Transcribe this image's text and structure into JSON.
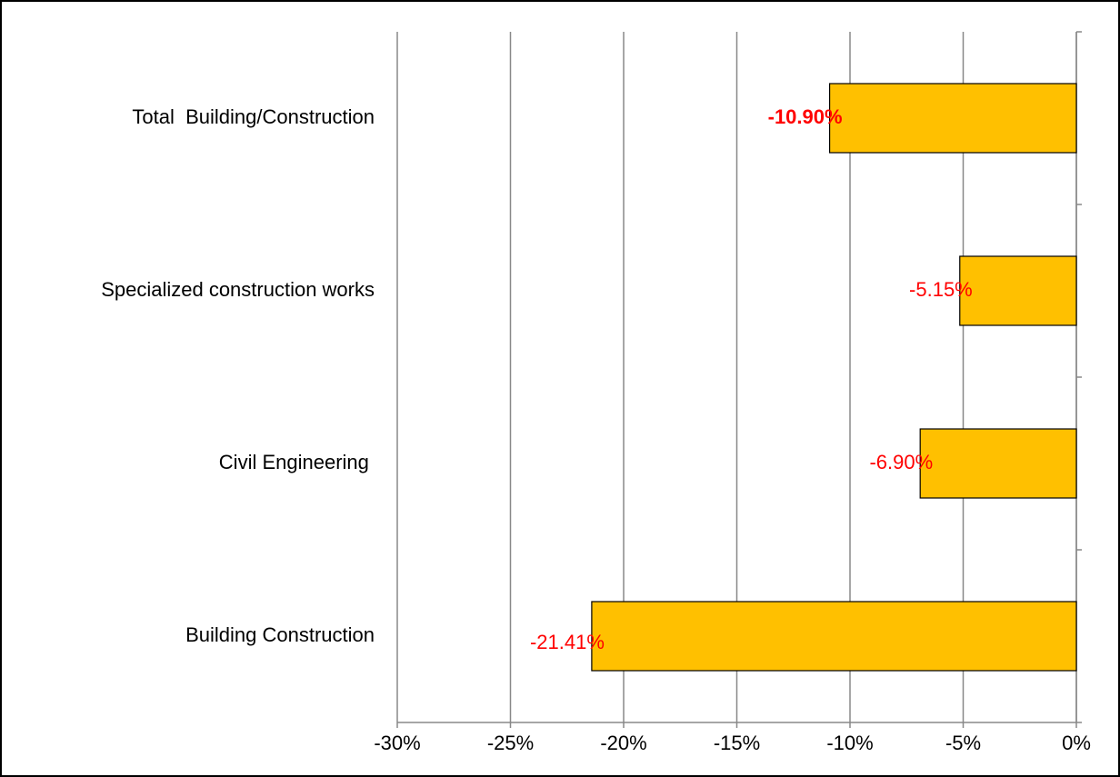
{
  "chart_data": {
    "type": "barh",
    "categories": [
      "Total  Building/Construction",
      "Specialized construction works",
      "Civil Engineering ",
      "Building Construction"
    ],
    "values": [
      -10.9,
      -5.15,
      -6.9,
      -21.41
    ],
    "value_labels": [
      "-10.90%",
      "-5.15%",
      "-6.90%",
      "-21.41%"
    ],
    "value_label_bold": [
      true,
      false,
      false,
      false
    ],
    "color": "#FFC000",
    "value_label_color": "#FF0000",
    "xlim": [
      -30,
      0
    ],
    "xticks": [
      {
        "value": -30,
        "label": "-30%"
      },
      {
        "value": -25,
        "label": "-25%"
      },
      {
        "value": -20,
        "label": "-20%"
      },
      {
        "value": -15,
        "label": "-15%"
      },
      {
        "value": -10,
        "label": "-10%"
      },
      {
        "value": -5,
        "label": "-5%"
      },
      {
        "value": 0,
        "label": "0%"
      }
    ],
    "grid": true
  }
}
